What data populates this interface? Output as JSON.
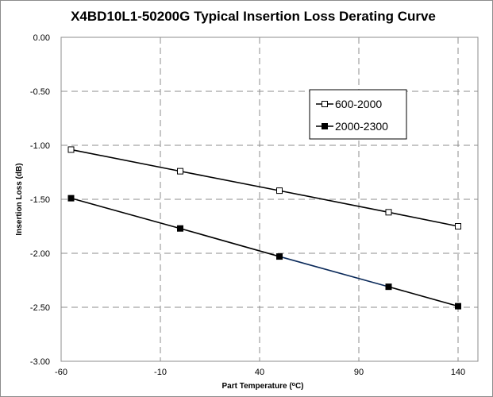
{
  "chart_data": {
    "type": "line",
    "title": "X4BD10L1-50200G Typical Insertion Loss Derating Curve",
    "xlabel_text": "Part Temperature (",
    "xlabel_unit": "o",
    "xlabel_suffix": "C)",
    "ylabel": "Insertion Loss (dB)",
    "xlim": [
      -60,
      150
    ],
    "ylim": [
      -3.0,
      0.0
    ],
    "x_ticks": [
      -60,
      -10,
      40,
      90,
      140
    ],
    "x_tick_labels": [
      "-60",
      "-10",
      "40",
      "90",
      "140"
    ],
    "y_ticks": [
      0.0,
      -0.5,
      -1.0,
      -1.5,
      -2.0,
      -2.5,
      -3.0
    ],
    "y_tick_labels": [
      "0.00",
      "-0.50",
      "-1.00",
      "-1.50",
      "-2.00",
      "-2.50",
      "-3.00"
    ],
    "grid": true,
    "legend_position": "top-right",
    "series": [
      {
        "name": "600-2000",
        "marker": "hollow-square",
        "color": "#000000",
        "x": [
          -55,
          0,
          50,
          105,
          140
        ],
        "y": [
          -1.04,
          -1.24,
          -1.42,
          -1.62,
          -1.75
        ]
      },
      {
        "name": "2000-2300",
        "marker": "filled-square",
        "color": "#000000",
        "x": [
          -55,
          0,
          50,
          105,
          140
        ],
        "y": [
          -1.49,
          -1.77,
          -2.03,
          -2.31,
          -2.49
        ]
      }
    ]
  }
}
